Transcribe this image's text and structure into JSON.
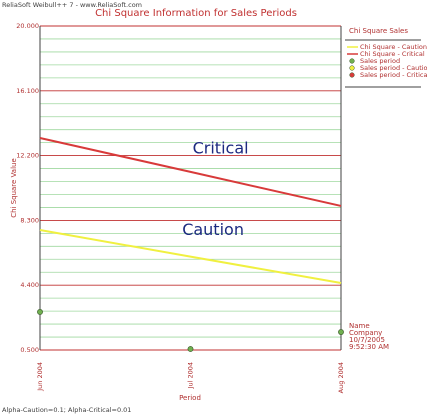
{
  "header": "ReliaSoft Weibull++ 7 - www.ReliaSoft.com",
  "footer": "Alpha-Caution=0.1; Alpha-Critical=0.01",
  "stamp": [
    "Name",
    "Company",
    "10/7/2005",
    "9:52:30 AM"
  ],
  "chart_data": {
    "type": "line",
    "title": "Chi Square Information for Sales Periods",
    "x_label": "Period",
    "y_label": "Chi Square Value",
    "legend_title": "Chi Square Sales",
    "categories": [
      "Jun 2004",
      "Jul 2004",
      "Aug 2004"
    ],
    "series": [
      {
        "name": "Chi Square - Caution",
        "color": "#f0f040",
        "style": "line",
        "values": [
          7.72,
          6.12,
          4.53
        ]
      },
      {
        "name": "Chi Square - Critical",
        "color": "#d83a3a",
        "style": "line",
        "values": [
          13.26,
          11.22,
          9.17
        ]
      },
      {
        "name": "Sales period",
        "color": "#70b050",
        "style": "marker",
        "values": [
          2.79,
          0.56,
          1.58
        ]
      },
      {
        "name": "Sales period - Caution",
        "color": "#f0f040",
        "style": "marker",
        "values": [
          null,
          null,
          null
        ]
      },
      {
        "name": "Sales period - Critical",
        "color": "#d83a3a",
        "style": "marker",
        "values": [
          null,
          null,
          null
        ]
      }
    ],
    "annotations": [
      {
        "text": "Critical",
        "x": 1.2,
        "y": 12.6
      },
      {
        "text": "Caution",
        "x": 1.15,
        "y": 7.7
      }
    ],
    "ylim": [
      0.5,
      20
    ],
    "yticks": [
      {
        "value": 0.5,
        "label": "0.500"
      },
      {
        "value": 4.4,
        "label": "4.400"
      },
      {
        "value": 8.3,
        "label": "8.300"
      },
      {
        "value": 12.2,
        "label": "12.200"
      },
      {
        "value": 16.1,
        "label": "16.100"
      },
      {
        "value": 20,
        "label": "20.000"
      }
    ],
    "grid": true,
    "minor_divisions": 5
  }
}
